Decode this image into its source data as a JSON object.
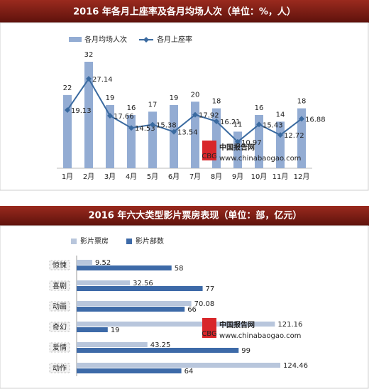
{
  "chart_data": [
    {
      "type": "combo",
      "title": "2016 年各月上座率及各月均场人次（单位：%，人）",
      "categories": [
        "1月",
        "2月",
        "3月",
        "4月",
        "5月",
        "6月",
        "7月",
        "8月",
        "9月",
        "10月",
        "11月",
        "12月"
      ],
      "series": [
        {
          "name": "各月均场人次",
          "type": "bar",
          "color": "#93acd3",
          "values": [
            22,
            32,
            19,
            16,
            17,
            19,
            20,
            18,
            11,
            16,
            14,
            18
          ]
        },
        {
          "name": "各月上座率",
          "type": "line",
          "color": "#3a6aa0",
          "values": [
            19.13,
            27.14,
            17.66,
            14.53,
            15.38,
            13.54,
            17.92,
            16.21,
            10.97,
            15.43,
            12.72,
            16.88
          ]
        }
      ]
    },
    {
      "type": "barh",
      "title": "2016 年六大类型影片票房表现（单位：部，亿元）",
      "categories": [
        "惊悚",
        "喜剧",
        "动画",
        "奇幻",
        "爱情",
        "动作"
      ],
      "series": [
        {
          "name": "影片票房",
          "color": "#b8c6dc",
          "values": [
            9.52,
            32.56,
            70.08,
            121.16,
            43.25,
            124.46
          ]
        },
        {
          "name": "影片部数",
          "color": "#3d6aa8",
          "values": [
            58,
            77,
            66,
            19,
            99,
            64
          ]
        }
      ]
    }
  ],
  "watermark": {
    "logo": "CBG",
    "title": "中国报告网",
    "url": "www.chinabaogao.com"
  }
}
